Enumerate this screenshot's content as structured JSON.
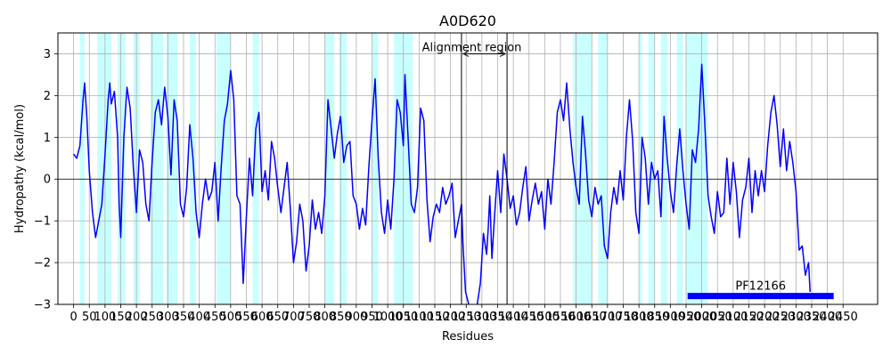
{
  "chart_data": {
    "type": "line",
    "title": "A0D620",
    "xlabel": "Residues",
    "ylabel": "Hydropathy (kcal/mol)",
    "xlim": [
      -50,
      2560
    ],
    "ylim": [
      -3,
      3.5
    ],
    "grid": true,
    "x_ticks": [
      0,
      50,
      100,
      150,
      200,
      250,
      300,
      350,
      400,
      450,
      500,
      550,
      600,
      650,
      700,
      750,
      800,
      850,
      900,
      950,
      1000,
      1050,
      1100,
      1150,
      1200,
      1250,
      1300,
      1350,
      1400,
      1450,
      1500,
      1550,
      1600,
      1650,
      1700,
      1750,
      1800,
      1850,
      1900,
      1950,
      2000,
      2050,
      2100,
      2150,
      2200,
      2250,
      2300,
      2350,
      2400,
      2450
    ],
    "x_tick_labels": [
      "0",
      "50",
      "100",
      "150",
      "200",
      "250",
      "300",
      "350",
      "400",
      "450",
      "500",
      "550",
      "600",
      "650",
      "700",
      "750",
      "800",
      "850",
      "900",
      "950",
      "1000",
      "1050",
      "1100",
      "1150",
      "1200",
      "1250",
      "1300",
      "1350",
      "1400",
      "1450",
      "1500",
      "1550",
      "1600",
      "1650",
      "1700",
      "1750",
      "1800",
      "1850",
      "1900",
      "1950",
      "2000",
      "2050",
      "2100",
      "2150",
      "2200",
      "2250",
      "2300",
      "2350",
      "2400",
      "2450"
    ],
    "y_ticks": [
      -3,
      -2,
      -1,
      0,
      1,
      2,
      3
    ],
    "y_tick_labels": [
      "−3",
      "−2",
      "−1",
      "0",
      "1",
      "2",
      "3"
    ],
    "series": [
      {
        "color": "#0000ff",
        "points": [
          [
            0,
            0.6
          ],
          [
            10,
            0.5
          ],
          [
            20,
            0.8
          ],
          [
            30,
            1.9
          ],
          [
            35,
            2.3
          ],
          [
            42,
            1.5
          ],
          [
            50,
            0.2
          ],
          [
            60,
            -0.8
          ],
          [
            70,
            -1.4
          ],
          [
            80,
            -1.0
          ],
          [
            90,
            -0.6
          ],
          [
            100,
            0.6
          ],
          [
            110,
            1.9
          ],
          [
            115,
            2.3
          ],
          [
            120,
            1.8
          ],
          [
            130,
            2.1
          ],
          [
            140,
            1.0
          ],
          [
            145,
            -0.6
          ],
          [
            150,
            -1.4
          ],
          [
            160,
            1.0
          ],
          [
            170,
            2.2
          ],
          [
            180,
            1.7
          ],
          [
            190,
            0.3
          ],
          [
            200,
            -0.8
          ],
          [
            210,
            0.7
          ],
          [
            220,
            0.4
          ],
          [
            230,
            -0.6
          ],
          [
            240,
            -1.0
          ],
          [
            250,
            0.4
          ],
          [
            260,
            1.6
          ],
          [
            270,
            1.9
          ],
          [
            280,
            1.3
          ],
          [
            290,
            2.2
          ],
          [
            300,
            1.5
          ],
          [
            310,
            0.1
          ],
          [
            320,
            1.9
          ],
          [
            330,
            1.4
          ],
          [
            340,
            -0.6
          ],
          [
            350,
            -0.9
          ],
          [
            360,
            -0.2
          ],
          [
            370,
            1.3
          ],
          [
            380,
            0.5
          ],
          [
            390,
            -0.8
          ],
          [
            400,
            -1.4
          ],
          [
            410,
            -0.6
          ],
          [
            420,
            0.0
          ],
          [
            430,
            -0.5
          ],
          [
            440,
            -0.3
          ],
          [
            450,
            0.4
          ],
          [
            460,
            -1.0
          ],
          [
            470,
            0.3
          ],
          [
            480,
            1.4
          ],
          [
            490,
            1.8
          ],
          [
            500,
            2.6
          ],
          [
            510,
            1.9
          ],
          [
            520,
            -0.4
          ],
          [
            530,
            -0.6
          ],
          [
            540,
            -2.5
          ],
          [
            550,
            -0.9
          ],
          [
            560,
            0.5
          ],
          [
            570,
            -0.4
          ],
          [
            580,
            1.2
          ],
          [
            590,
            1.6
          ],
          [
            600,
            -0.3
          ],
          [
            610,
            0.2
          ],
          [
            620,
            -0.5
          ],
          [
            630,
            0.9
          ],
          [
            640,
            0.5
          ],
          [
            650,
            -0.2
          ],
          [
            660,
            -0.8
          ],
          [
            670,
            -0.2
          ],
          [
            680,
            0.4
          ],
          [
            690,
            -0.7
          ],
          [
            700,
            -2.0
          ],
          [
            710,
            -1.5
          ],
          [
            720,
            -0.6
          ],
          [
            730,
            -1.0
          ],
          [
            740,
            -2.2
          ],
          [
            750,
            -1.6
          ],
          [
            760,
            -0.5
          ],
          [
            770,
            -1.2
          ],
          [
            780,
            -0.8
          ],
          [
            790,
            -1.3
          ],
          [
            800,
            -0.4
          ],
          [
            810,
            1.9
          ],
          [
            820,
            1.2
          ],
          [
            830,
            0.5
          ],
          [
            840,
            1.1
          ],
          [
            850,
            1.5
          ],
          [
            860,
            0.4
          ],
          [
            870,
            0.8
          ],
          [
            880,
            0.9
          ],
          [
            890,
            -0.4
          ],
          [
            900,
            -0.6
          ],
          [
            910,
            -1.2
          ],
          [
            920,
            -0.7
          ],
          [
            930,
            -1.1
          ],
          [
            940,
            0.3
          ],
          [
            950,
            1.4
          ],
          [
            960,
            2.4
          ],
          [
            970,
            0.5
          ],
          [
            980,
            -0.8
          ],
          [
            990,
            -1.3
          ],
          [
            1000,
            -0.5
          ],
          [
            1010,
            -1.2
          ],
          [
            1020,
            0.0
          ],
          [
            1030,
            1.9
          ],
          [
            1040,
            1.6
          ],
          [
            1050,
            0.8
          ],
          [
            1055,
            2.5
          ],
          [
            1065,
            1.0
          ],
          [
            1075,
            -0.6
          ],
          [
            1085,
            -0.8
          ],
          [
            1095,
            -0.2
          ],
          [
            1105,
            1.7
          ],
          [
            1115,
            1.4
          ],
          [
            1125,
            -0.5
          ],
          [
            1135,
            -1.5
          ],
          [
            1145,
            -0.9
          ],
          [
            1155,
            -0.6
          ],
          [
            1165,
            -0.8
          ],
          [
            1175,
            -0.2
          ],
          [
            1185,
            -0.6
          ],
          [
            1195,
            -0.4
          ],
          [
            1205,
            -0.1
          ],
          [
            1215,
            -1.4
          ],
          [
            1225,
            -1.0
          ],
          [
            1235,
            -0.6
          ],
          [
            1240,
            -1.6
          ],
          [
            1248,
            -2.7
          ],
          [
            1258,
            -3.0
          ],
          [
            1270,
            -3.1
          ],
          [
            1285,
            -3.0
          ],
          [
            1295,
            -2.5
          ],
          [
            1305,
            -1.3
          ],
          [
            1315,
            -1.8
          ],
          [
            1320,
            -1.2
          ],
          [
            1325,
            -0.4
          ],
          [
            1332,
            -1.9
          ],
          [
            1340,
            -0.9
          ],
          [
            1350,
            0.2
          ],
          [
            1360,
            -0.8
          ],
          [
            1370,
            0.6
          ],
          [
            1380,
            0.0
          ],
          [
            1390,
            -0.7
          ],
          [
            1400,
            -0.4
          ],
          [
            1410,
            -1.1
          ],
          [
            1420,
            -0.8
          ],
          [
            1430,
            -0.2
          ],
          [
            1440,
            0.3
          ],
          [
            1450,
            -1.0
          ],
          [
            1460,
            -0.5
          ],
          [
            1470,
            -0.1
          ],
          [
            1480,
            -0.6
          ],
          [
            1490,
            -0.3
          ],
          [
            1500,
            -1.2
          ],
          [
            1510,
            0.0
          ],
          [
            1520,
            -0.6
          ],
          [
            1530,
            0.4
          ],
          [
            1540,
            1.6
          ],
          [
            1550,
            1.9
          ],
          [
            1560,
            1.4
          ],
          [
            1570,
            2.3
          ],
          [
            1580,
            1.2
          ],
          [
            1590,
            0.4
          ],
          [
            1600,
            -0.2
          ],
          [
            1610,
            -0.6
          ],
          [
            1620,
            1.5
          ],
          [
            1630,
            0.6
          ],
          [
            1640,
            -0.5
          ],
          [
            1650,
            -0.9
          ],
          [
            1660,
            -0.2
          ],
          [
            1670,
            -0.6
          ],
          [
            1680,
            -0.4
          ],
          [
            1690,
            -1.6
          ],
          [
            1700,
            -1.9
          ],
          [
            1710,
            -0.8
          ],
          [
            1720,
            -0.2
          ],
          [
            1730,
            -0.6
          ],
          [
            1740,
            0.2
          ],
          [
            1750,
            -0.5
          ],
          [
            1760,
            1.0
          ],
          [
            1770,
            1.9
          ],
          [
            1780,
            0.9
          ],
          [
            1790,
            -0.8
          ],
          [
            1800,
            -1.3
          ],
          [
            1810,
            1.0
          ],
          [
            1820,
            0.5
          ],
          [
            1830,
            -0.6
          ],
          [
            1840,
            0.4
          ],
          [
            1850,
            0.0
          ],
          [
            1860,
            0.2
          ],
          [
            1870,
            -0.9
          ],
          [
            1880,
            1.5
          ],
          [
            1890,
            0.5
          ],
          [
            1900,
            -0.3
          ],
          [
            1910,
            -0.8
          ],
          [
            1920,
            0.3
          ],
          [
            1930,
            1.2
          ],
          [
            1940,
            0.2
          ],
          [
            1950,
            -0.6
          ],
          [
            1960,
            -1.2
          ],
          [
            1970,
            0.7
          ],
          [
            1980,
            0.4
          ],
          [
            1990,
            1.2
          ],
          [
            2000,
            2.75
          ],
          [
            2010,
            1.3
          ],
          [
            2020,
            -0.4
          ],
          [
            2030,
            -0.9
          ],
          [
            2040,
            -1.3
          ],
          [
            2050,
            -0.3
          ],
          [
            2060,
            -0.9
          ],
          [
            2070,
            -0.8
          ],
          [
            2080,
            0.5
          ],
          [
            2090,
            -0.6
          ],
          [
            2100,
            0.4
          ],
          [
            2110,
            -0.3
          ],
          [
            2120,
            -1.4
          ],
          [
            2130,
            -0.5
          ],
          [
            2140,
            -0.2
          ],
          [
            2150,
            0.5
          ],
          [
            2160,
            -0.8
          ],
          [
            2170,
            0.2
          ],
          [
            2180,
            -0.4
          ],
          [
            2190,
            0.2
          ],
          [
            2200,
            -0.3
          ],
          [
            2210,
            0.8
          ],
          [
            2220,
            1.6
          ],
          [
            2230,
            2.0
          ],
          [
            2240,
            1.3
          ],
          [
            2250,
            0.3
          ],
          [
            2260,
            1.2
          ],
          [
            2270,
            0.2
          ],
          [
            2280,
            0.9
          ],
          [
            2290,
            0.4
          ],
          [
            2300,
            -0.3
          ],
          [
            2310,
            -1.7
          ],
          [
            2320,
            -1.6
          ],
          [
            2330,
            -2.3
          ],
          [
            2340,
            -2.0
          ],
          [
            2345,
            -2.7
          ]
        ]
      }
    ],
    "highlight_bands": [
      [
        20,
        35
      ],
      [
        75,
        120
      ],
      [
        140,
        165
      ],
      [
        190,
        210
      ],
      [
        245,
        285
      ],
      [
        295,
        330
      ],
      [
        370,
        390
      ],
      [
        455,
        500
      ],
      [
        570,
        590
      ],
      [
        800,
        830
      ],
      [
        845,
        870
      ],
      [
        950,
        970
      ],
      [
        1020,
        1080
      ],
      [
        1590,
        1650
      ],
      [
        1670,
        1700
      ],
      [
        1800,
        1810
      ],
      [
        1830,
        1850
      ],
      [
        1870,
        1890
      ],
      [
        1920,
        1940
      ],
      [
        1950,
        2020
      ]
    ],
    "alignment_region": {
      "label": "Alignment region",
      "start": 1235,
      "end": 1380
    },
    "domain_bar": {
      "label": "PF12166",
      "start": 1955,
      "end": 2420,
      "y": -2.8
    }
  }
}
